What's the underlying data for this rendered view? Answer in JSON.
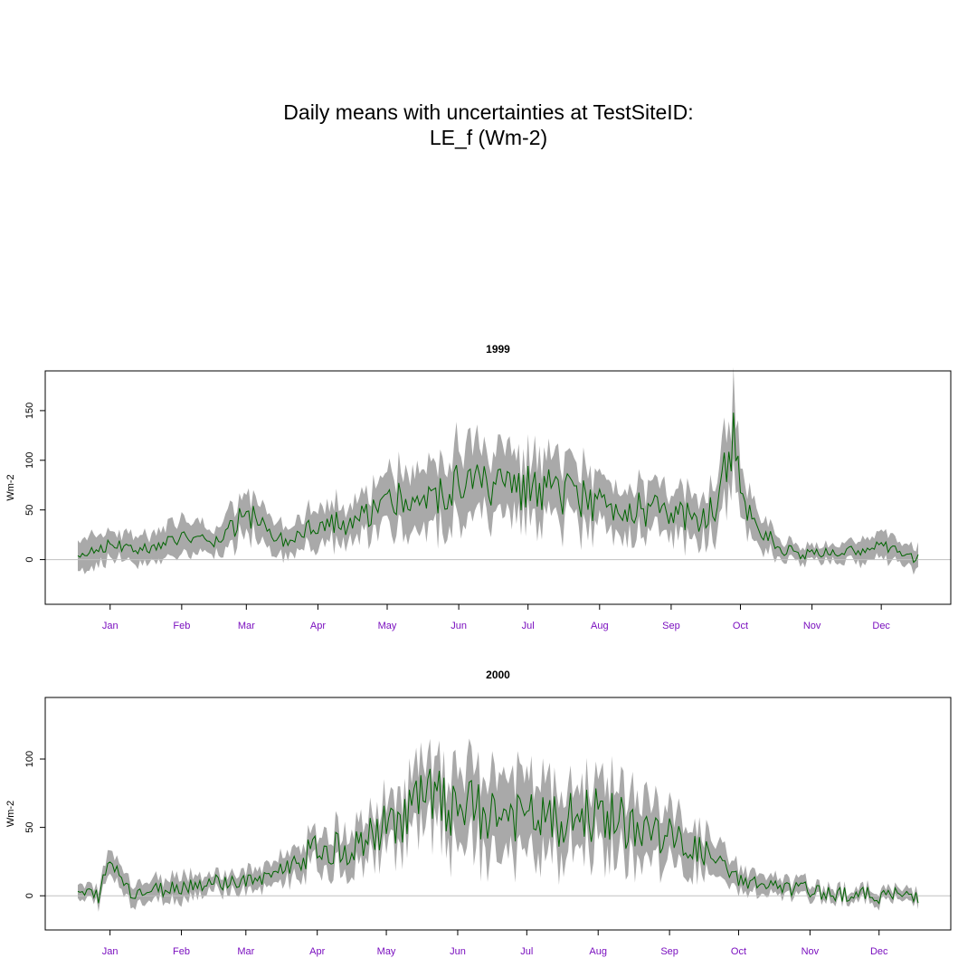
{
  "title": {
    "line1": "Daily means with uncertainties at TestSiteID:",
    "line2": "LE_f (Wm-2)"
  },
  "colors": {
    "band": "#a9a9a9",
    "line": "#006400",
    "zero_line": "#c0c0c0",
    "month_label": "#7a0fbf"
  },
  "chart_data": [
    {
      "type": "line",
      "title": "1999",
      "ylabel": "Wm-2",
      "ylim": [
        -45,
        190
      ],
      "yticks": [
        0,
        50,
        100,
        150
      ],
      "months": [
        "Jan",
        "Feb",
        "Mar",
        "Apr",
        "May",
        "Jun",
        "Jul",
        "Aug",
        "Sep",
        "Oct",
        "Nov",
        "Dec"
      ],
      "x_unit": "day of year",
      "xlim": [
        1,
        365
      ],
      "series": [
        {
          "value_key": [
            1,
            15,
            32,
            46,
            60,
            74,
            91,
            105,
            121,
            135,
            152,
            166,
            182,
            196,
            213,
            227,
            244,
            258,
            274,
            286,
            288,
            300,
            305,
            319,
            335,
            349,
            365
          ],
          "mean": [
            5,
            15,
            10,
            25,
            15,
            45,
            18,
            40,
            35,
            60,
            55,
            75,
            68,
            70,
            65,
            58,
            52,
            45,
            40,
            120,
            55,
            25,
            10,
            5,
            8,
            15,
            0
          ],
          "sd": [
            17,
            13,
            12,
            17,
            12,
            20,
            13,
            18,
            18,
            25,
            30,
            34,
            32,
            30,
            28,
            24,
            24,
            21,
            20,
            40,
            22,
            15,
            9,
            6,
            10,
            12,
            10
          ]
        }
      ]
    },
    {
      "type": "line",
      "title": "2000",
      "ylabel": "Wm-2",
      "ylim": [
        -25,
        145
      ],
      "yticks": [
        0,
        50,
        100
      ],
      "months": [
        "Jan",
        "Feb",
        "Mar",
        "Apr",
        "May",
        "Jun",
        "Jul",
        "Aug",
        "Sep",
        "Oct",
        "Nov",
        "Dec"
      ],
      "x_unit": "day of year",
      "xlim": [
        1,
        366
      ],
      "series": [
        {
          "value_key": [
            1,
            10,
            15,
            25,
            32,
            46,
            60,
            74,
            91,
            105,
            121,
            135,
            152,
            166,
            182,
            196,
            213,
            227,
            244,
            258,
            274,
            288,
            305,
            319,
            335,
            349,
            366
          ],
          "mean": [
            2,
            0,
            25,
            2,
            3,
            7,
            10,
            10,
            20,
            35,
            35,
            50,
            70,
            65,
            60,
            55,
            55,
            60,
            50,
            42,
            30,
            12,
            5,
            4,
            1,
            0,
            0
          ],
          "sd": [
            6,
            5,
            8,
            7,
            7,
            8,
            6,
            7,
            9,
            12,
            14,
            16,
            22,
            26,
            28,
            26,
            24,
            24,
            21,
            17,
            14,
            9,
            6,
            5,
            4,
            4,
            4
          ]
        }
      ]
    }
  ]
}
